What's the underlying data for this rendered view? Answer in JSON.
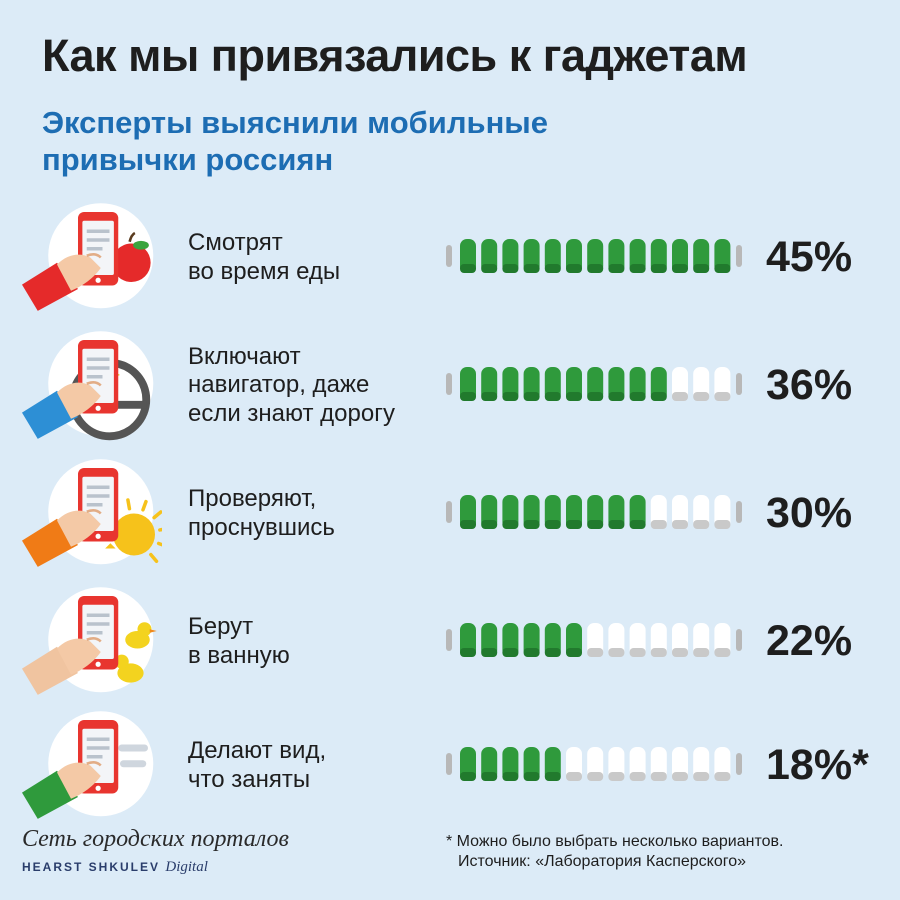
{
  "header": {
    "title": "Как мы привязались к гаджетам",
    "subtitle": "Эксперты выяснили мобильные привычки россиян"
  },
  "chart_data": {
    "type": "bar",
    "title": "Как мы привязались к гаджетам",
    "subtitle": "Эксперты выяснили мобильные привычки россиян",
    "orientation": "horizontal-pictogram",
    "segments_total": 13,
    "xlim": [
      0,
      45
    ],
    "categories": [
      [
        "Смотрят",
        "во время еды"
      ],
      [
        "Включают",
        "навигатор, даже",
        "если знают дорогу"
      ],
      [
        "Проверяют,",
        "проснувшись"
      ],
      [
        "Берут",
        "в ванную"
      ],
      [
        "Делают вид,",
        "что заняты"
      ]
    ],
    "values": [
      45,
      36,
      30,
      22,
      18
    ],
    "value_labels": [
      "45%",
      "36%",
      "30%",
      "22%",
      "18%*"
    ],
    "icons": [
      "phone-with-apple-icon",
      "phone-with-steering-wheel-icon",
      "phone-with-sun-icon",
      "phone-with-rubber-duck-icon",
      "phone-with-social-feed-icon"
    ],
    "sleeve_colors": [
      "#e52a2a",
      "#2d8fd5",
      "#f07b16",
      "#f0c4a0",
      "#2f9a3c"
    ],
    "colors": {
      "filled": "#2f9a3c",
      "empty": "#ffffff",
      "cap": "#b8b8b8",
      "phone": "#e8352f"
    }
  },
  "footer": {
    "logo_main": "Сеть городских порталов",
    "logo_sub": "HEARST SHKULEV",
    "logo_sub_script": "Digital",
    "note": "* Можно было выбрать несколько вариантов.",
    "source": "Источник: «Лаборатория Касперского»"
  }
}
